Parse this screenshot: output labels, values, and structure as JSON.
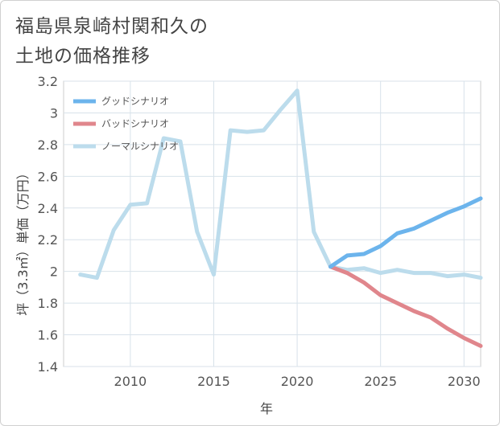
{
  "title_lines": [
    "福島県泉崎村関和久の",
    "土地の価格推移"
  ],
  "chart_data": {
    "type": "line",
    "xlabel": "年",
    "ylabel": "坪（3.3㎡）単価（万円）",
    "xlim": [
      2006,
      2031
    ],
    "ylim": [
      1.4,
      3.2
    ],
    "xticks": [
      2010,
      2015,
      2020,
      2025,
      2030
    ],
    "yticks": [
      1.4,
      1.6,
      1.8,
      2,
      2.2,
      2.4,
      2.6,
      2.8,
      3,
      3.2
    ],
    "ytick_labels": [
      "1.4",
      "1.6",
      "1.8",
      "2",
      "2.2",
      "2.4",
      "2.6",
      "2.8",
      "3",
      "3.2"
    ],
    "legend_position": "top-left",
    "series": [
      {
        "name": "グッドシナリオ",
        "color": "#6cb4ec",
        "x": [
          2022,
          2023,
          2024,
          2025,
          2026,
          2027,
          2028,
          2029,
          2030,
          2031
        ],
        "values": [
          2.03,
          2.1,
          2.11,
          2.16,
          2.24,
          2.27,
          2.32,
          2.37,
          2.41,
          2.46
        ]
      },
      {
        "name": "バッドシナリオ",
        "color": "#e0868c",
        "x": [
          2022,
          2023,
          2024,
          2025,
          2026,
          2027,
          2028,
          2029,
          2030,
          2031
        ],
        "values": [
          2.03,
          1.99,
          1.93,
          1.85,
          1.8,
          1.75,
          1.71,
          1.64,
          1.58,
          1.53
        ]
      },
      {
        "name": "ノーマルシナリオ",
        "color": "#bcdcec",
        "x": [
          2007,
          2008,
          2009,
          2010,
          2011,
          2012,
          2013,
          2014,
          2015,
          2016,
          2017,
          2018,
          2019,
          2020,
          2021,
          2022,
          2023,
          2024,
          2025,
          2026,
          2027,
          2028,
          2029,
          2030,
          2031
        ],
        "values": [
          1.98,
          1.96,
          2.26,
          2.42,
          2.43,
          2.84,
          2.82,
          2.25,
          1.98,
          2.89,
          2.88,
          2.89,
          3.02,
          3.14,
          2.25,
          2.03,
          2.01,
          2.02,
          1.99,
          2.01,
          1.99,
          1.99,
          1.97,
          1.98,
          1.96
        ]
      }
    ]
  }
}
